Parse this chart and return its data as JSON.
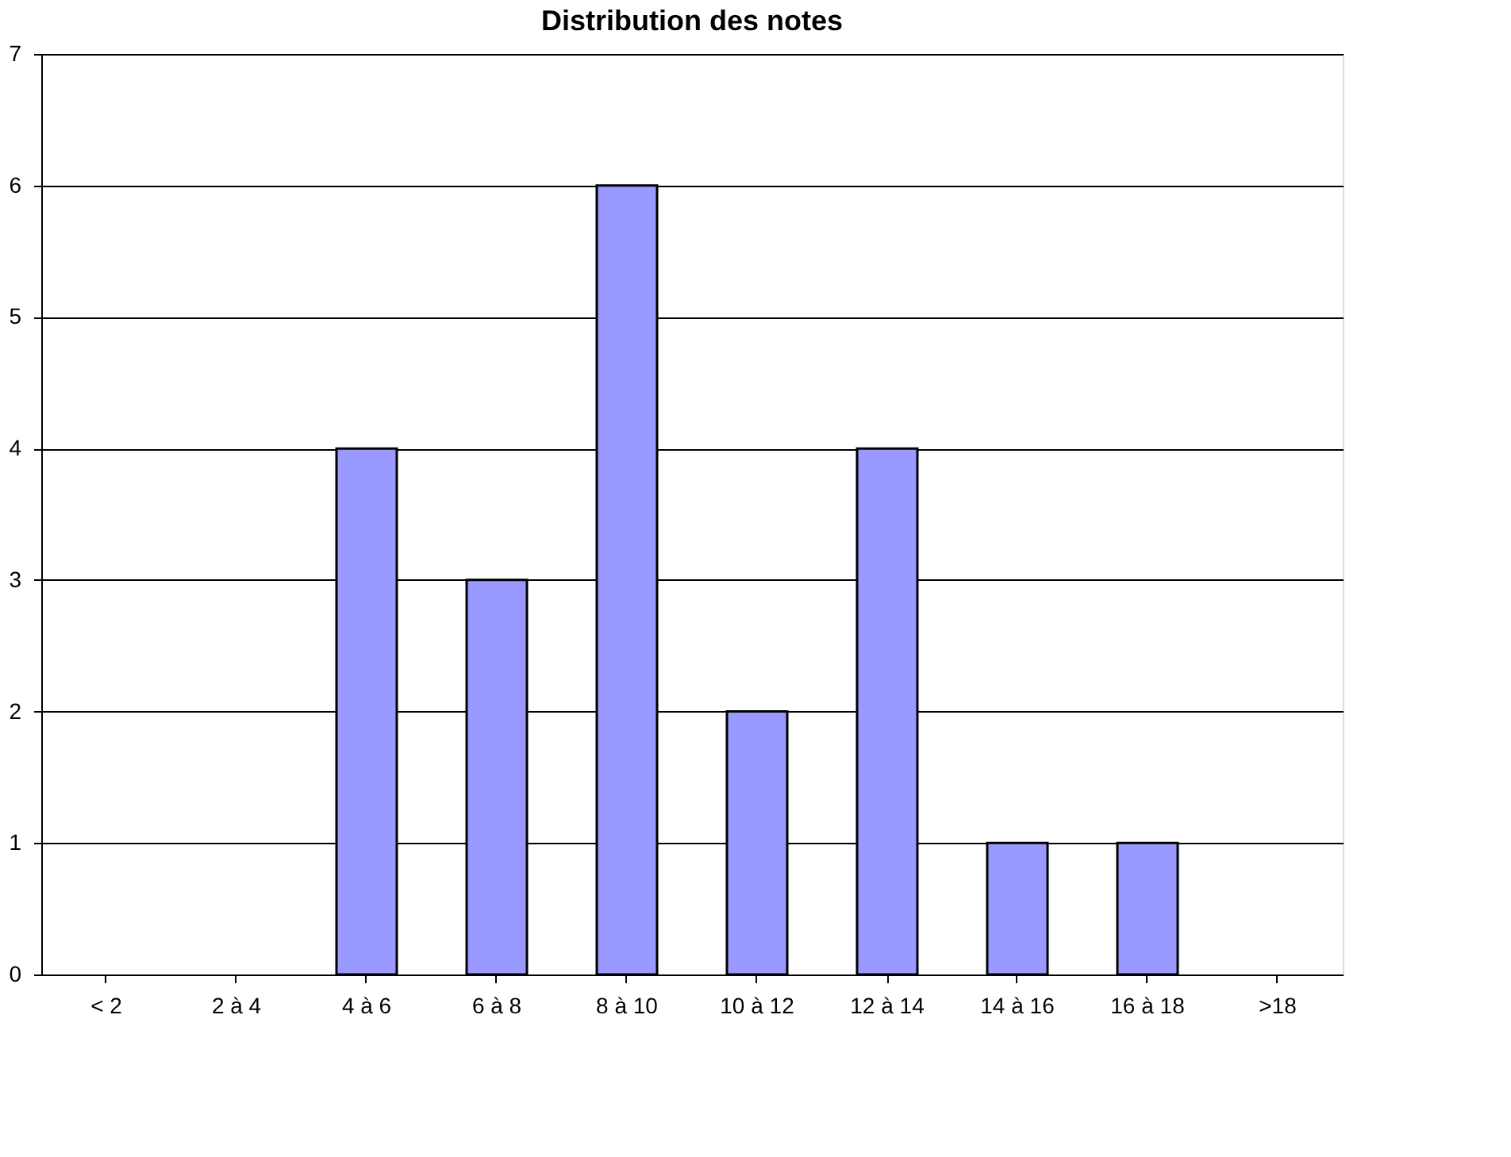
{
  "chart_data": {
    "type": "bar",
    "title": "Distribution des notes",
    "categories": [
      "< 2",
      "2 à 4",
      "4 à 6",
      "6 à 8",
      "8 à 10",
      "10 à 12",
      "12 à 14",
      "14 à 16",
      "16 à 18",
      ">18"
    ],
    "values": [
      0,
      0,
      4,
      3,
      6,
      2,
      4,
      1,
      1,
      0
    ],
    "color": "#9999ff",
    "ylim": [
      0,
      7
    ],
    "yticks": [
      0,
      1,
      2,
      3,
      4,
      5,
      6,
      7
    ],
    "grid": "y"
  }
}
